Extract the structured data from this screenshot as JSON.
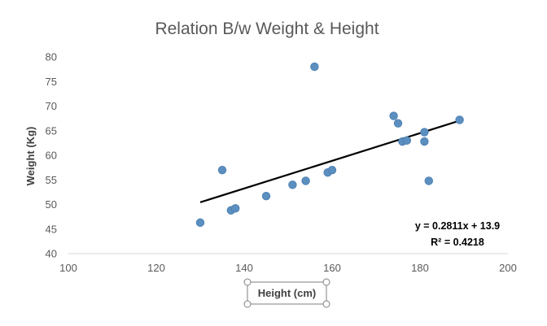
{
  "chart_data": {
    "type": "scatter",
    "title": "Relation B/w Weight & Height",
    "xlabel": "Height (cm)",
    "ylabel": "Weight (Kg)",
    "xlim": [
      100,
      200
    ],
    "ylim": [
      40,
      80
    ],
    "xticks": [
      100,
      120,
      140,
      160,
      180,
      200
    ],
    "yticks": [
      40,
      45,
      50,
      55,
      60,
      65,
      70,
      75,
      80
    ],
    "grid": false,
    "legend": "none",
    "marker_color": "#5b8fc0",
    "trendline_color": "#000000",
    "points": [
      {
        "x": 130,
        "y": 46.3
      },
      {
        "x": 135,
        "y": 57.0
      },
      {
        "x": 137,
        "y": 48.8
      },
      {
        "x": 138,
        "y": 49.2
      },
      {
        "x": 145,
        "y": 51.7
      },
      {
        "x": 151,
        "y": 54.0
      },
      {
        "x": 154,
        "y": 54.8
      },
      {
        "x": 156,
        "y": 78.0
      },
      {
        "x": 159,
        "y": 56.5
      },
      {
        "x": 160,
        "y": 57.0
      },
      {
        "x": 174,
        "y": 68.0
      },
      {
        "x": 175,
        "y": 66.5
      },
      {
        "x": 176,
        "y": 62.8
      },
      {
        "x": 177,
        "y": 63.0
      },
      {
        "x": 181,
        "y": 64.7
      },
      {
        "x": 181,
        "y": 62.8
      },
      {
        "x": 182,
        "y": 54.8
      },
      {
        "x": 189,
        "y": 67.2
      }
    ],
    "trendline": {
      "slope": 0.2811,
      "intercept": 13.9,
      "x_from": 130,
      "x_to": 189,
      "equation_label": "y = 0.2811x + 13.9",
      "r2_label": "R² = 0.4218"
    }
  }
}
